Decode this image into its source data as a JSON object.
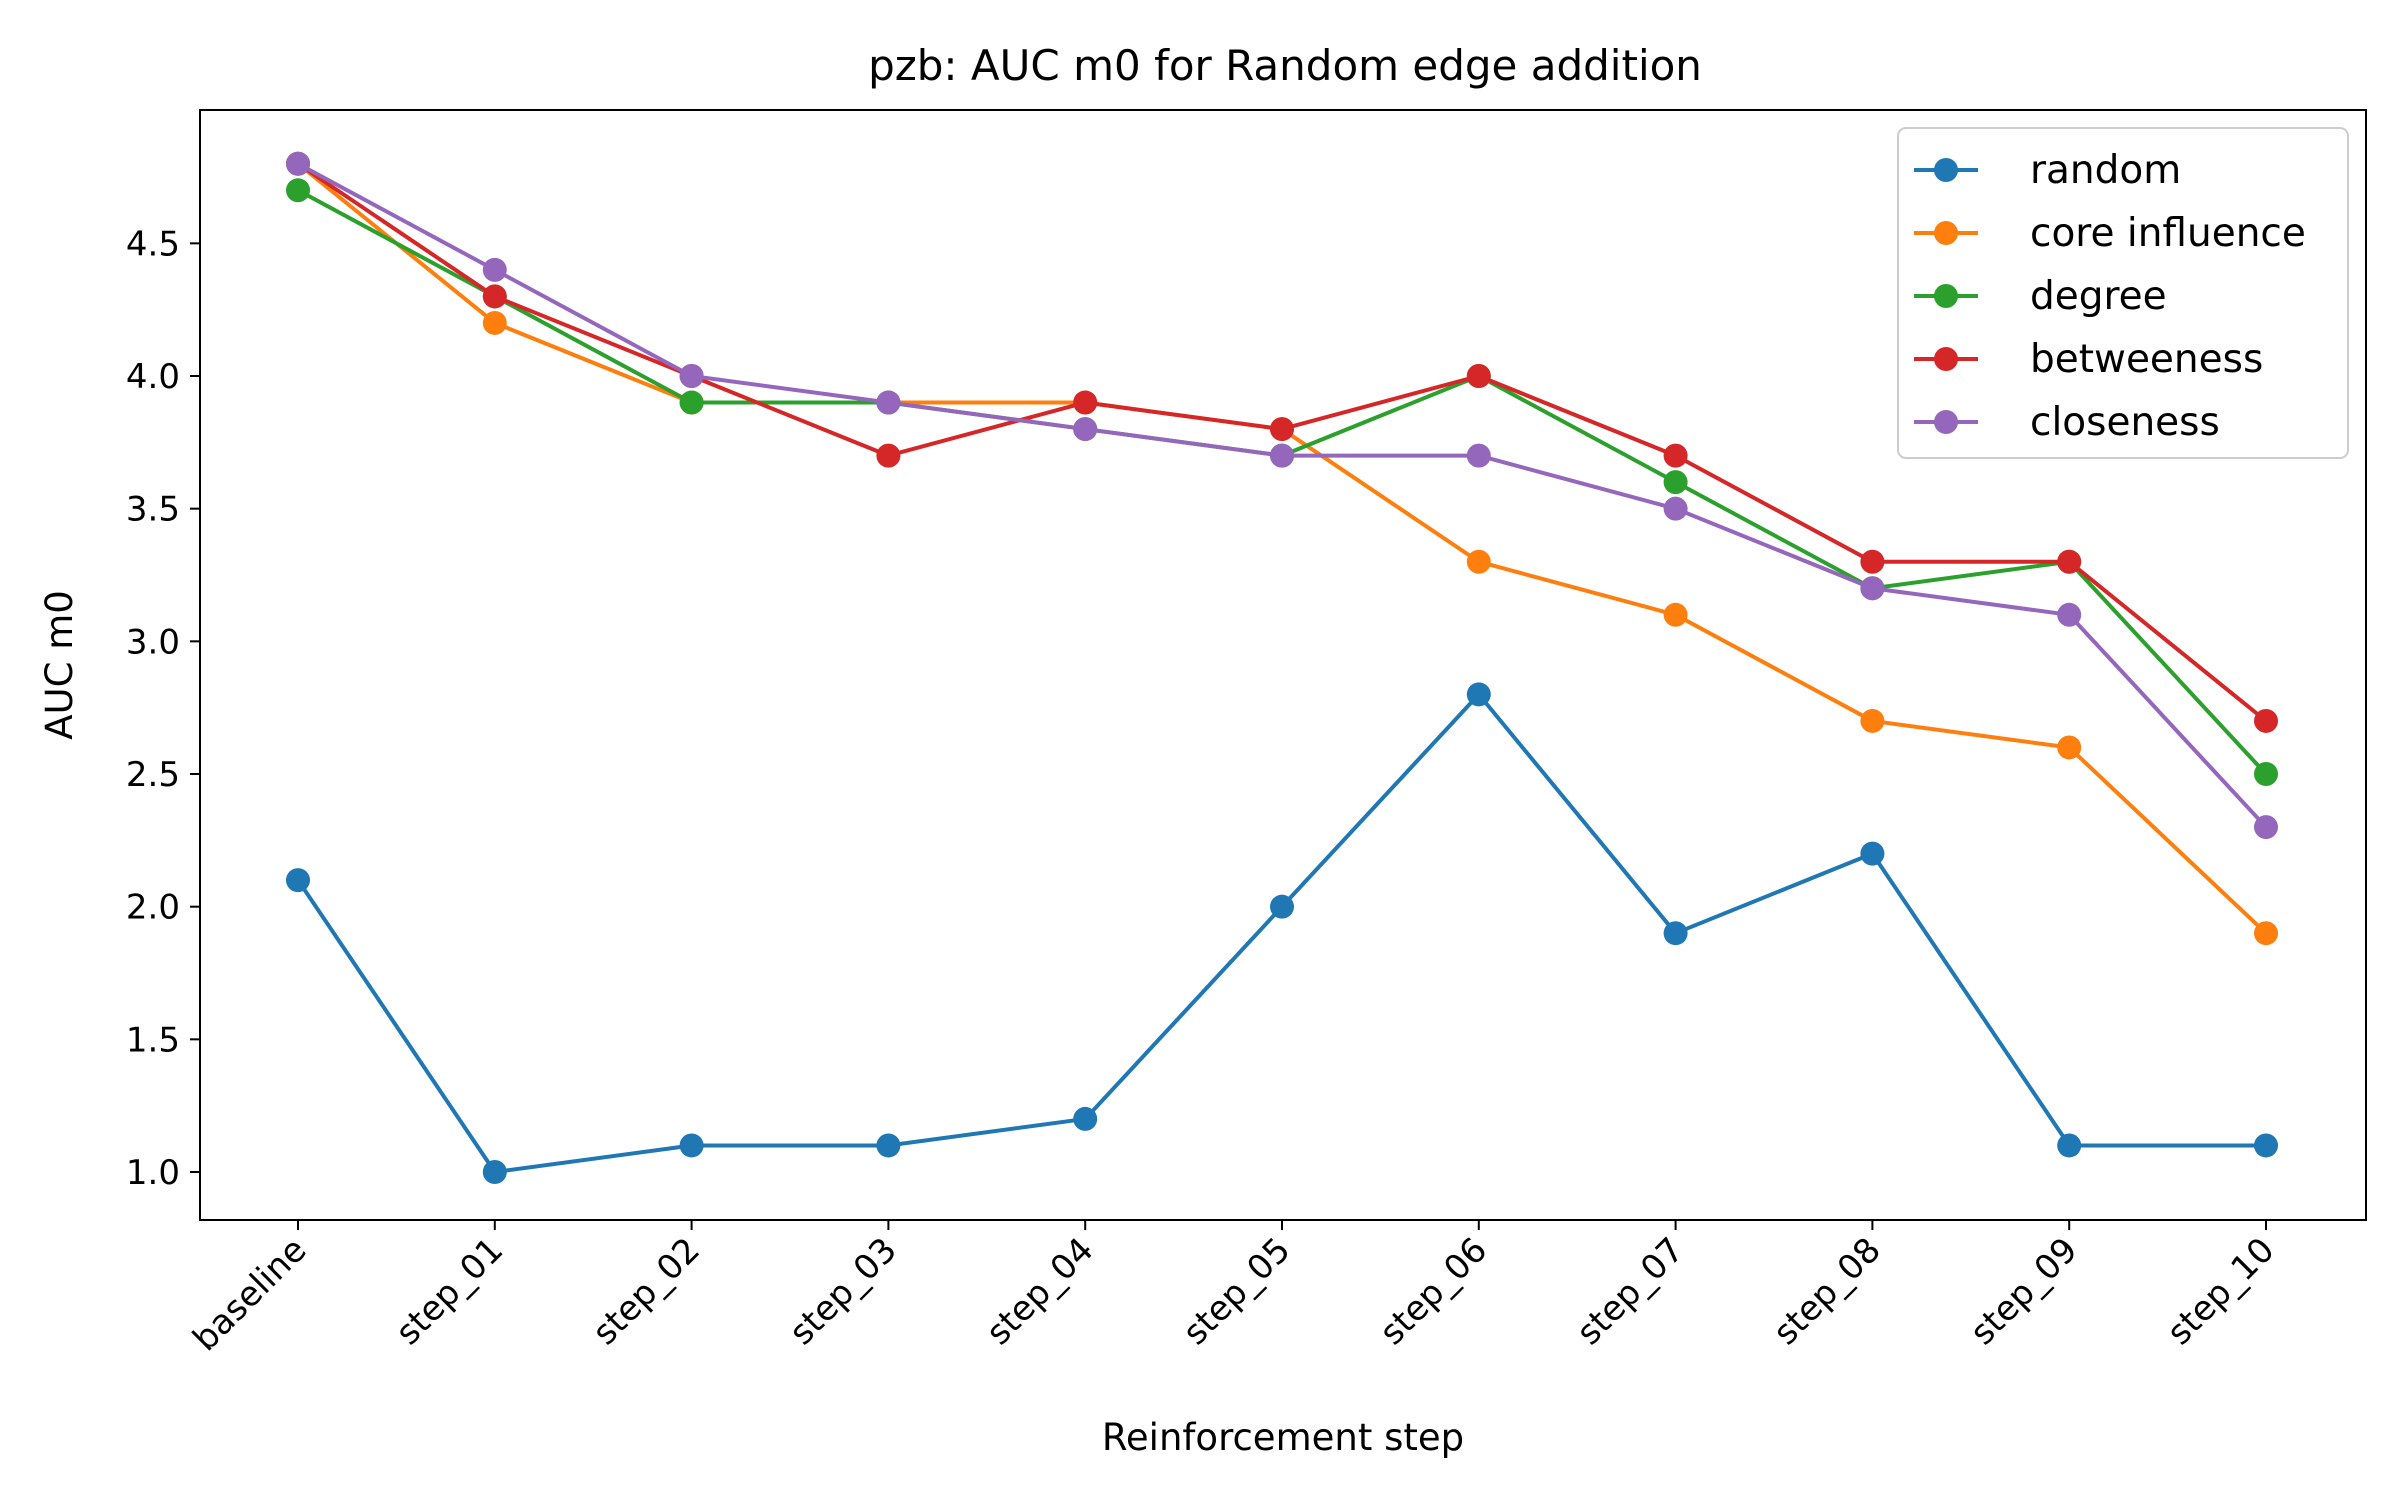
{
  "chart_data": {
    "type": "line",
    "title": "pzb: AUC m0 for Random edge addition",
    "xlabel": "Reinforcement step",
    "ylabel": "AUC m0",
    "categories": [
      "baseline",
      "step_01",
      "step_02",
      "step_03",
      "step_04",
      "step_05",
      "step_06",
      "step_07",
      "step_08",
      "step_09",
      "step_10"
    ],
    "yticks": [
      "1.0",
      "1.5",
      "2.0",
      "2.5",
      "3.0",
      "3.5",
      "4.0",
      "4.5"
    ],
    "ylim": [
      0.8,
      4.9
    ],
    "grid": false,
    "legend_position": "top-right",
    "series": [
      {
        "name": "random",
        "color": "#1f77b4",
        "values": [
          2.1,
          1.0,
          1.1,
          1.1,
          1.2,
          2.0,
          2.8,
          1.9,
          2.2,
          1.1,
          1.1
        ]
      },
      {
        "name": "core influence",
        "color": "#ff7f0e",
        "values": [
          4.8,
          4.2,
          3.9,
          3.9,
          3.9,
          3.8,
          3.3,
          3.1,
          2.7,
          2.6,
          1.9
        ]
      },
      {
        "name": "degree",
        "color": "#2ca02c",
        "values": [
          4.7,
          4.3,
          3.9,
          3.9,
          3.8,
          3.7,
          4.0,
          3.6,
          3.2,
          3.3,
          2.5
        ]
      },
      {
        "name": "betweeness",
        "color": "#d62728",
        "values": [
          4.8,
          4.3,
          4.0,
          3.7,
          3.9,
          3.8,
          4.0,
          3.7,
          3.3,
          3.3,
          2.7
        ]
      },
      {
        "name": "closeness",
        "color": "#9467bd",
        "values": [
          4.8,
          4.4,
          4.0,
          3.9,
          3.8,
          3.7,
          3.7,
          3.5,
          3.2,
          3.1,
          2.3
        ]
      }
    ]
  }
}
